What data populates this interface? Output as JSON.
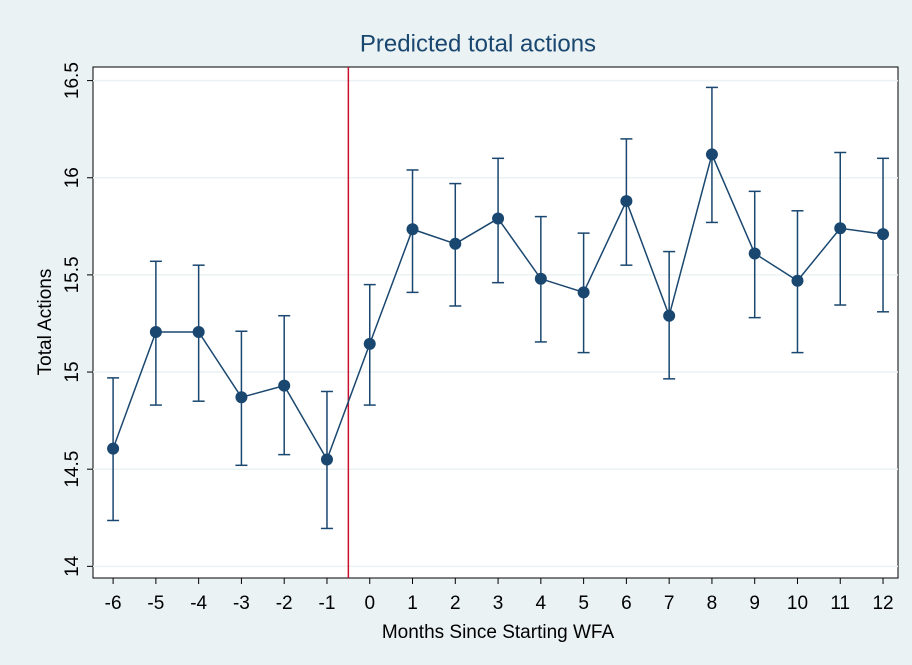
{
  "chart_data": {
    "type": "line",
    "title": "Predicted total actions",
    "x_label": "Months Since Starting WFA",
    "y_label": "Total Actions",
    "x": [
      -6,
      -5,
      -4,
      -3,
      -2,
      -1,
      0,
      1,
      2,
      3,
      4,
      5,
      6,
      7,
      8,
      9,
      10,
      11,
      12
    ],
    "series": [
      {
        "color": "#1a476f",
        "values": [
          14.606,
          15.206,
          15.206,
          14.87,
          14.93,
          14.55,
          15.145,
          15.735,
          15.66,
          15.79,
          15.48,
          15.41,
          15.88,
          15.29,
          16.12,
          15.61,
          15.47,
          15.74,
          15.71
        ],
        "lower": [
          14.236,
          14.83,
          14.85,
          14.52,
          14.575,
          14.195,
          14.83,
          15.41,
          15.34,
          15.46,
          15.155,
          15.1,
          15.55,
          14.965,
          15.77,
          15.28,
          15.1,
          15.345,
          15.31
        ],
        "upper": [
          14.97,
          15.57,
          15.55,
          15.21,
          15.29,
          14.9,
          15.45,
          16.04,
          15.97,
          16.1,
          15.8,
          15.715,
          16.2,
          15.62,
          16.465,
          15.93,
          15.83,
          16.13,
          16.1
        ]
      }
    ],
    "reference_line": -0.5,
    "reference_color": "#c8102e",
    "xlim": [
      -6.47,
      12.35
    ],
    "ylim": [
      13.94,
      16.57
    ],
    "xticks": [
      -6,
      -5,
      -4,
      -3,
      -2,
      -1,
      0,
      1,
      2,
      3,
      4,
      5,
      6,
      7,
      8,
      9,
      10,
      11,
      12
    ],
    "yticks": [
      14,
      14.5,
      15,
      15.5,
      16,
      16.5
    ],
    "grid": true
  }
}
